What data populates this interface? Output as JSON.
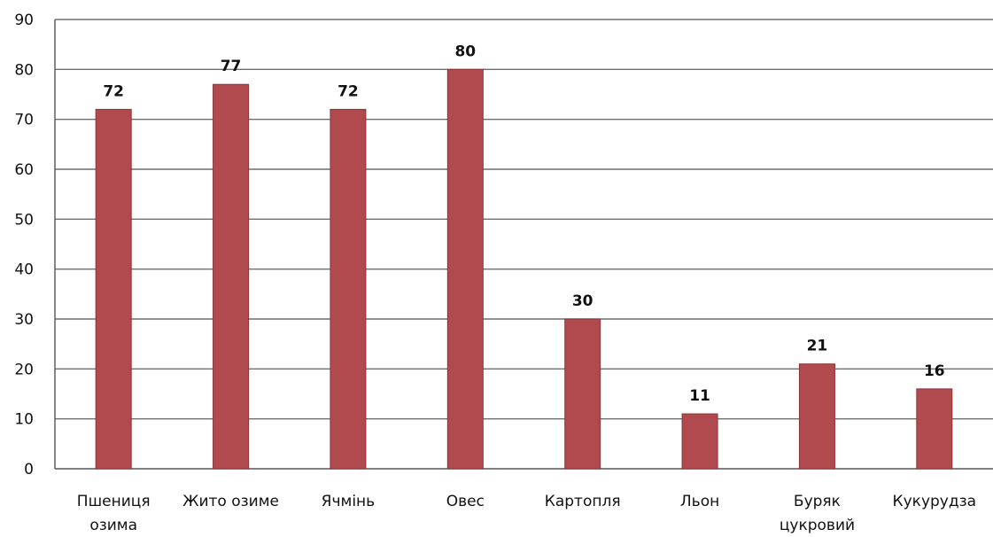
{
  "chart_data": {
    "type": "bar",
    "categories": [
      [
        "Пшениця",
        "озима"
      ],
      [
        "Жито озиме"
      ],
      [
        "Ячмінь"
      ],
      [
        "Овес"
      ],
      [
        "Картопля"
      ],
      [
        "Льон"
      ],
      [
        "Буряк",
        "цукровий"
      ],
      [
        "Кукурудза"
      ]
    ],
    "values": [
      72,
      77,
      72,
      80,
      30,
      11,
      21,
      16
    ],
    "data_labels": [
      "72",
      "77",
      "72",
      "80",
      "30",
      "11",
      "21",
      "16"
    ],
    "ylim": [
      0,
      90
    ],
    "yticks": [
      0,
      10,
      20,
      30,
      40,
      50,
      60,
      70,
      80,
      90
    ],
    "title": "",
    "xlabel": "",
    "ylabel": "",
    "grid": true,
    "legend": "none",
    "colors": {
      "bar": "#b04a4f",
      "bar_edge": "#8a3539",
      "grid": "#6f6f6f",
      "axis": "#555555"
    }
  }
}
